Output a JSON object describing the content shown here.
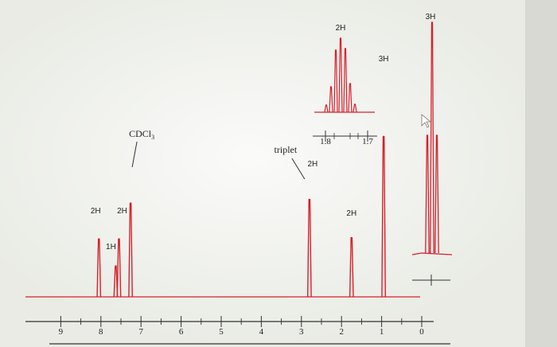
{
  "chart_data": {
    "type": "line",
    "title": "",
    "xlabel": "",
    "ylabel": "",
    "x_axis": {
      "reversed": true,
      "range": [
        9.9,
        0.0
      ],
      "tick_labels": [
        "9",
        "8",
        "7",
        "6",
        "5",
        "4",
        "3",
        "2",
        "1",
        "0"
      ]
    },
    "series": [
      {
        "peaks": [
          {
            "ppm": 8.05,
            "height": 0.47
          },
          {
            "ppm": 7.63,
            "height": 0.25
          },
          {
            "ppm": 7.55,
            "height": 0.47
          },
          {
            "ppm": 7.26,
            "height": 0.76
          },
          {
            "ppm": 2.8,
            "height": 0.79
          },
          {
            "ppm": 1.75,
            "height": 0.48
          },
          {
            "ppm": 0.95,
            "height": 1.3
          }
        ]
      }
    ],
    "annotations": [
      {
        "id": "a1",
        "text": "2H",
        "ppm": 8.05
      },
      {
        "id": "a2",
        "text": "2H",
        "ppm": 7.55
      },
      {
        "id": "a3",
        "text": "1H",
        "ppm": 7.63
      },
      {
        "id": "a4",
        "text": "CDCl",
        "sub": "3",
        "ppm": 7.26
      },
      {
        "id": "a5",
        "text": "triplet",
        "ppm": 2.8
      },
      {
        "id": "a6",
        "text": "2H",
        "ppm": 2.8
      },
      {
        "id": "a7",
        "text": "2H",
        "ppm": 1.75
      },
      {
        "id": "a8",
        "text": "3H",
        "ppm": 0.95
      }
    ],
    "inset_multiplet": {
      "integral": "2H",
      "axis_tick_labels": [
        "1.8",
        "1.7"
      ]
    },
    "inset_triplet": {
      "integral": "3H"
    }
  },
  "colors": {
    "trace": "#d6202a",
    "axis": "#333333",
    "background": "#e9ebe4"
  }
}
